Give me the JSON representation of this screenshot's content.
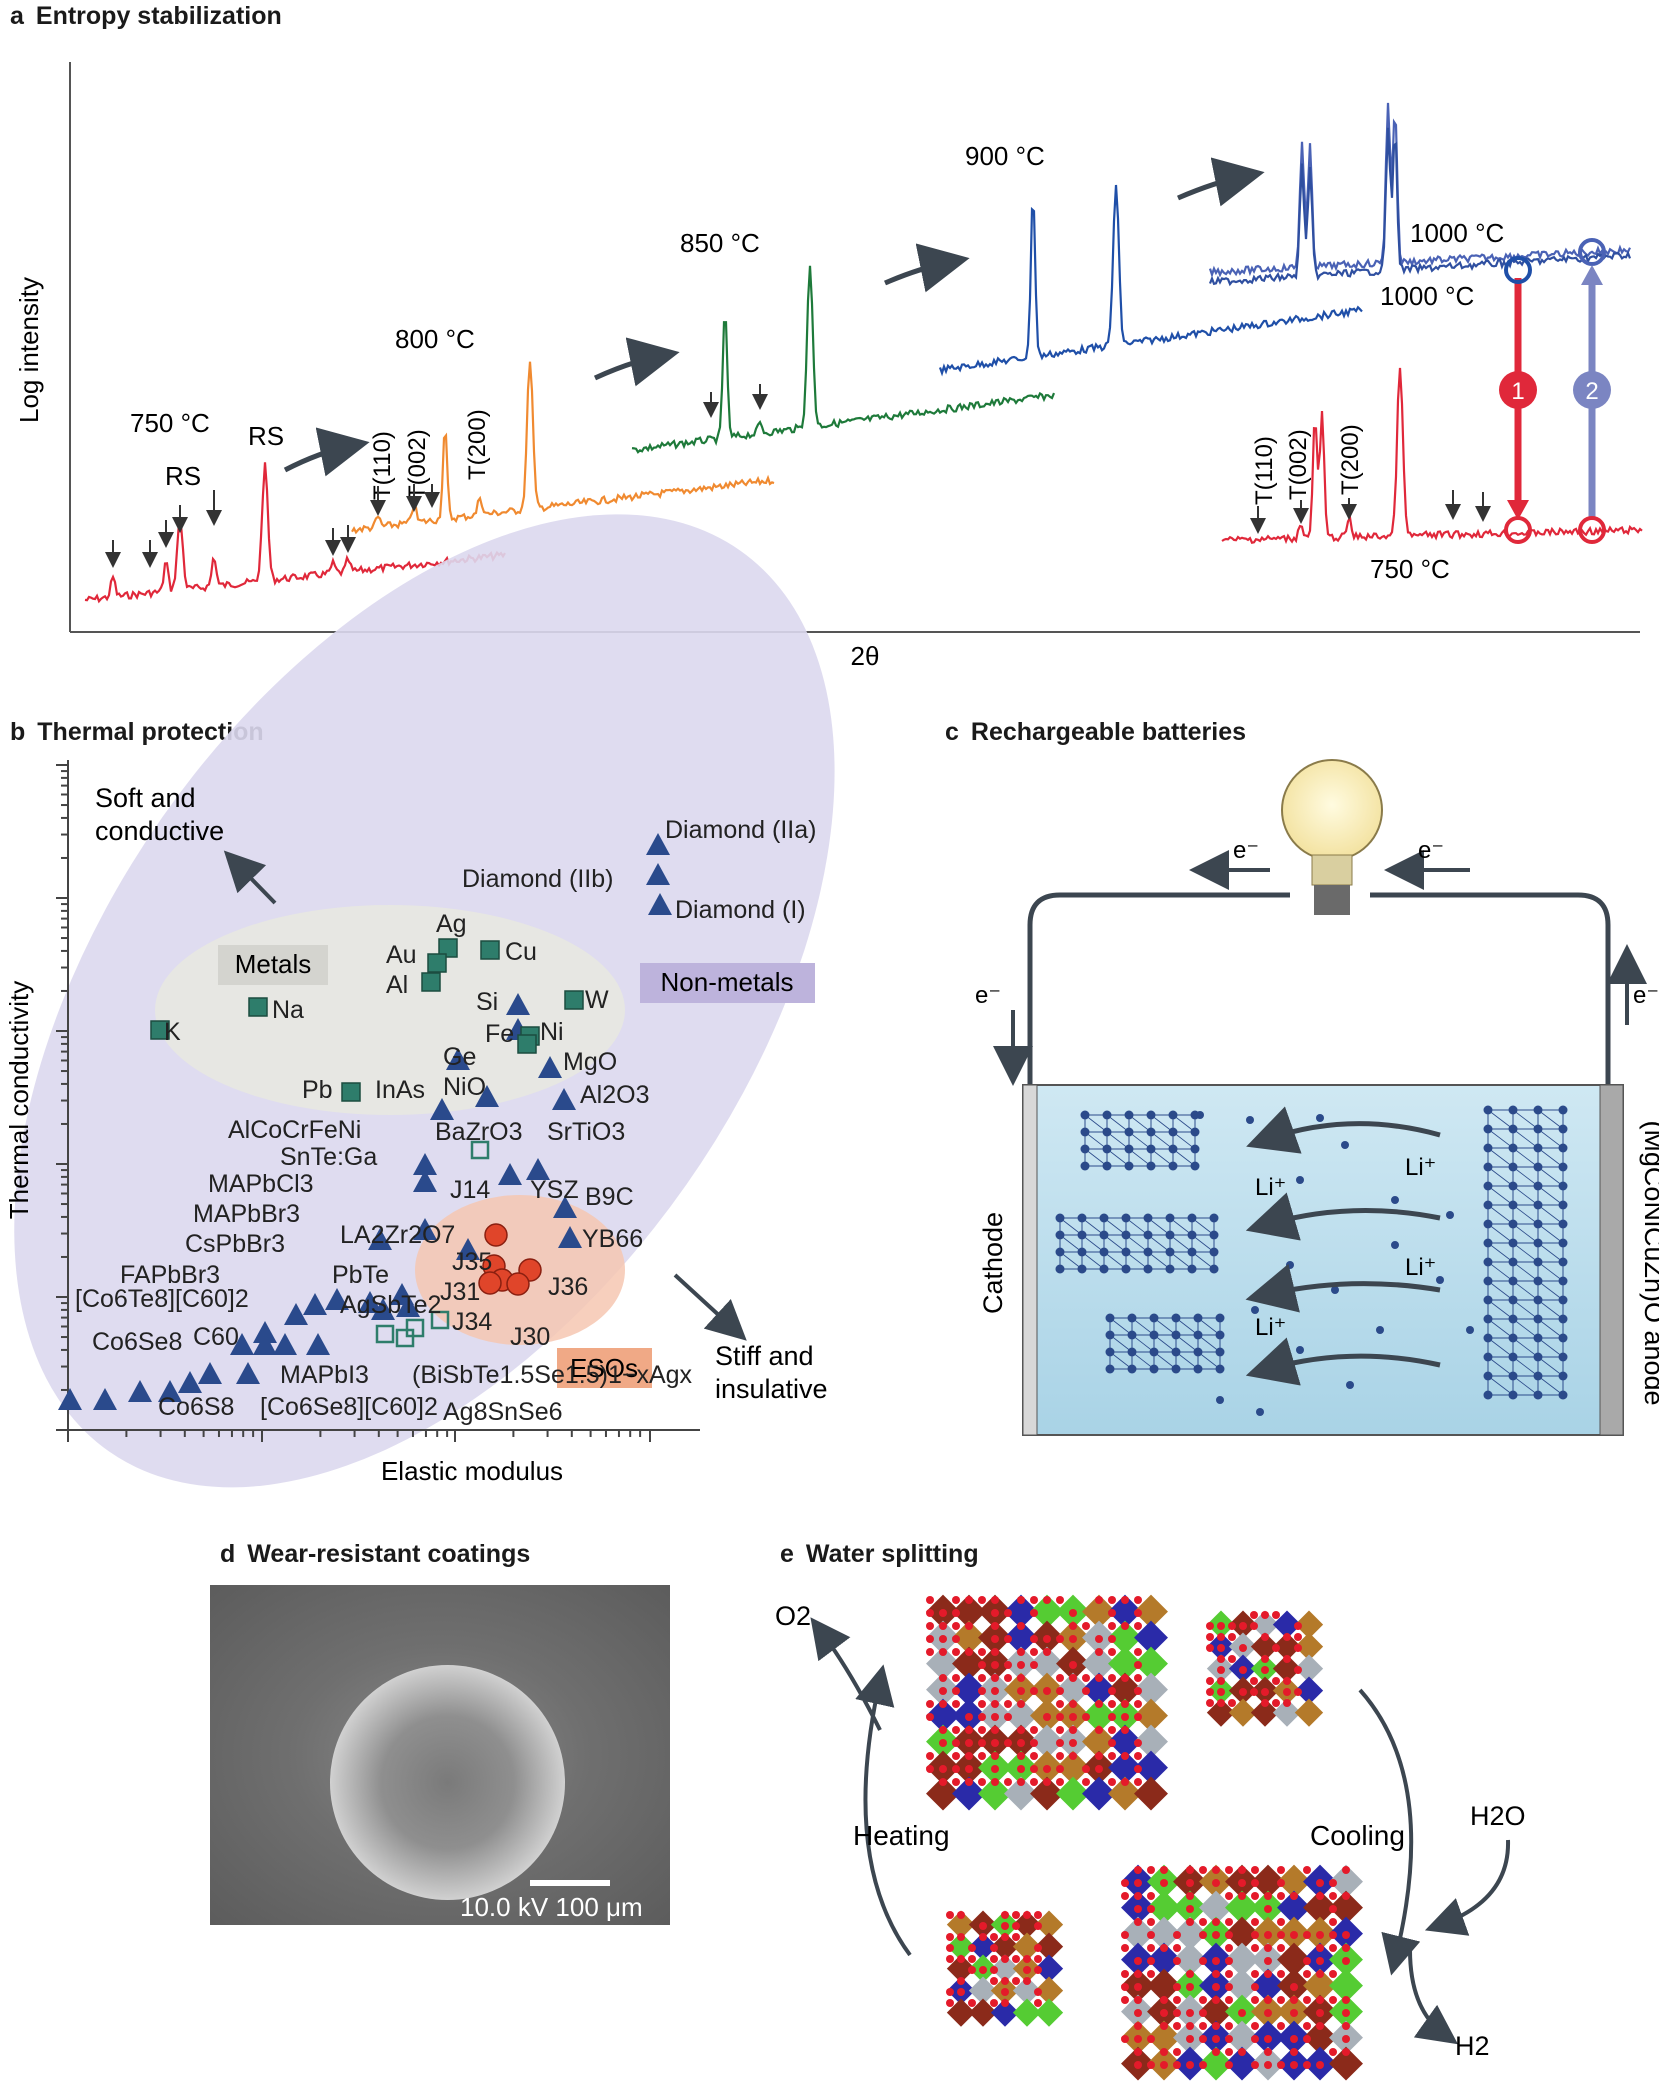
{
  "panel_a": {
    "letter": "a",
    "title": "Entropy stabilization",
    "ylabel": "Log intensity",
    "xlabel": "2θ",
    "temps": {
      "t750": "750 °C",
      "t800": "800 °C",
      "t850": "850 °C",
      "t900": "900 °C",
      "t1000a": "1000 °C",
      "t1000b": "1000 °C",
      "t750b": "750 °C"
    },
    "peak_labels": {
      "rs1": "RS",
      "rs2": "RS",
      "t110": "T(110)",
      "t002": "T(002)",
      "t200": "T(200)",
      "t110b": "T(110)",
      "t002b": "T(002)",
      "t200b": "T(200)"
    },
    "steps": {
      "s1": "1",
      "s2": "2"
    },
    "colors": {
      "t750": "#e0283a",
      "t800": "#f08a30",
      "t850": "#1e7a3a",
      "t900": "#1f4fa8",
      "t1000": "#4a62b5",
      "step1": "#e0283a",
      "step2": "#7b85c2"
    }
  },
  "panel_b": {
    "letter": "b",
    "title": "Thermal protection",
    "xlabel": "Elastic modulus",
    "ylabel": "Thermal conductivity",
    "notes": {
      "soft": "Soft and",
      "soft2": "conductive",
      "stiff": "Stiff and",
      "stiff2": "insulative"
    },
    "regions": {
      "metals": "Metals",
      "nonmetals": "Non-metals",
      "esos": "ESOs"
    },
    "labels": {
      "diamond_iia": "Diamond (IIa)",
      "diamond_iib": "Diamond (IIb)",
      "diamond_i": "Diamond (I)",
      "ag": "Ag",
      "au": "Au",
      "cu": "Cu",
      "al": "Al",
      "na": "Na",
      "k": "K",
      "si": "Si",
      "w": "W",
      "fe": "Fe",
      "ni": "Ni",
      "ge": "Ge",
      "mgo": "MgO",
      "pb": "Pb",
      "inas": "InAs",
      "nio": "NiO",
      "al2o3": "Al2O3",
      "alcocrfeni": "AlCoCrFeNi",
      "bazro3": "BaZrO3",
      "srtio3": "SrTiO3",
      "snte": "SnTe:Ga",
      "j14": "J14",
      "ysz": "YSZ",
      "b9c": "B9C",
      "mapbcl3": "MAPbCl3",
      "mapbbr3": "MAPbBr3",
      "cspbbr3": "CsPbBr3",
      "fapbbr3": "FAPbBr3",
      "la2zr2o7": "LA2Zr2O7",
      "j35": "J35",
      "yb66": "YB66",
      "pbte": "PbTe",
      "j31": "J31",
      "j36": "J36",
      "agsbte2": "AgSbTe2",
      "j34": "J34",
      "j30": "J30",
      "co6te8": "[Co6Te8][C60]2",
      "co6se8": "Co6Se8",
      "c60": "C60",
      "mapbi3": "MAPbI3",
      "bisbte": "(BiSbTe1.5Se1.5)1−xAgx",
      "co6s8": "Co6S8",
      "co6se8c60": "[Co6Se8][C60]2",
      "ag8snse6": "Ag8SnSe6"
    },
    "colors": {
      "triangle": "#2a4a8c",
      "square": "#2e7d6b",
      "eso": "#e0452a",
      "metals_bg": "#e7e7e2",
      "nonmetals_bg": "#dcd8ee",
      "esos_bg": "#f6c7b2"
    }
  },
  "panel_c": {
    "letter": "c",
    "title": "Rechargeable batteries",
    "cathode": "Cathode",
    "anode": "(MgCoNiCuZn)O anode",
    "electron": "e⁻",
    "li": "Li⁺",
    "colors": {
      "electrolyte": "#bfe0ef",
      "lattice": "#2b4a8a"
    }
  },
  "panel_d": {
    "letter": "d",
    "title": "Wear-resistant coatings",
    "scale": "10.0 kV 100 μm"
  },
  "panel_e": {
    "letter": "e",
    "title": "Water splitting",
    "o2": "O2",
    "h2o": "H2O",
    "h2": "H2",
    "heating": "Heating",
    "cooling": "Cooling"
  }
}
